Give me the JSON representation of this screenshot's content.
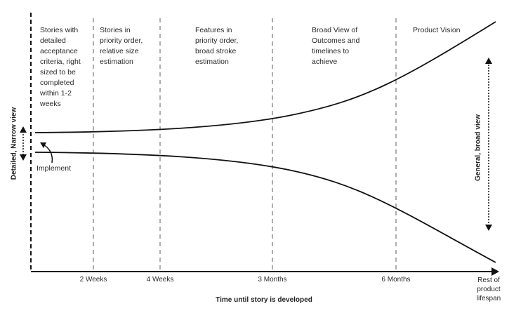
{
  "columns": [
    {
      "lines": [
        "Stories with",
        "detailed",
        "acceptance",
        "criteria, right",
        "sized to be",
        "completed",
        "within 1-2",
        "weeks"
      ]
    },
    {
      "lines": [
        "Stories in",
        "priority order,",
        "relative size",
        "estimation"
      ]
    },
    {
      "lines": [
        "Features in",
        "priority order,",
        "broad stroke",
        "estimation"
      ]
    },
    {
      "lines": [
        "Broad View of",
        "Outcomes and",
        "timelines to",
        "achieve"
      ]
    },
    {
      "lines": [
        "Product Vision"
      ]
    }
  ],
  "x_ticks": [
    "2 Weeks",
    "4 Weeks",
    "3 Months",
    "6 Months"
  ],
  "x_end_label": [
    "Rest of",
    "product",
    "lifespan"
  ],
  "x_axis_title": "Time until story is developed",
  "left_axis_label": "Detailed, Narrow view",
  "right_axis_label": "General, broad view",
  "implement_label": "Implement",
  "colors": {
    "line": "#111111",
    "divider": "#777777",
    "text": "#2a2a2a"
  }
}
